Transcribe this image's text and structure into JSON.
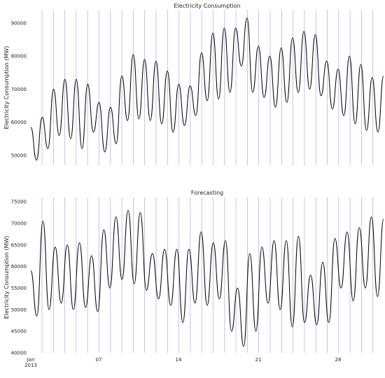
{
  "chart_data": [
    {
      "type": "line",
      "title": "Electricity Consumption",
      "ylabel": "Electricity Consumption (MW)",
      "xlabel": "",
      "ylim": [
        47000,
        94000
      ],
      "yticks": [
        "50000",
        "60000",
        "70000",
        "80000",
        "90000"
      ],
      "grid": "vertical daily lines",
      "series": [
        {
          "values": [
            58500,
            48500,
            61500,
            52000,
            70000,
            56000,
            73000,
            55000,
            73000,
            52000,
            71500,
            57000,
            66000,
            51000,
            64500,
            53500,
            74000,
            60500,
            80500,
            61000,
            79000,
            60500,
            78500,
            59500,
            75500,
            57000,
            71500,
            59000,
            71000,
            62000,
            81000,
            66500,
            87000,
            67000,
            88500,
            69000,
            88500,
            77000,
            91500,
            69000,
            83000,
            67500,
            80000,
            64500,
            82500,
            66000,
            85500,
            69000,
            87500,
            70000,
            86500,
            68000,
            78500,
            64000,
            76000,
            62000,
            80000,
            59500,
            77500,
            57500,
            73500,
            57000,
            74000
          ]
        }
      ]
    },
    {
      "type": "line",
      "title": "Forecasting",
      "ylabel": "Electricity Consumption (MW)",
      "xlabel": "",
      "ylim": [
        40000,
        76000
      ],
      "yticks": [
        "40000",
        "45000",
        "50000",
        "55000",
        "60000",
        "65000",
        "70000",
        "75000"
      ],
      "xticks": [
        "Jan\n2013",
        "07",
        "14",
        "21",
        "28"
      ],
      "grid": "vertical daily lines",
      "series": [
        {
          "values": [
            59000,
            48500,
            70500,
            50000,
            64500,
            51500,
            65000,
            50000,
            65500,
            50500,
            62500,
            49500,
            68500,
            55000,
            71500,
            57000,
            73000,
            56000,
            72500,
            54500,
            63000,
            52500,
            64000,
            51000,
            64000,
            47000,
            64000,
            51500,
            68000,
            51000,
            65500,
            52500,
            66000,
            45000,
            55000,
            41500,
            63000,
            45000,
            64500,
            51500,
            66000,
            50000,
            66000,
            46000,
            67000,
            47000,
            58000,
            46500,
            61000,
            47000,
            66500,
            55000,
            68000,
            52000,
            69000,
            55000,
            71500,
            53000,
            71000
          ]
        }
      ]
    }
  ]
}
